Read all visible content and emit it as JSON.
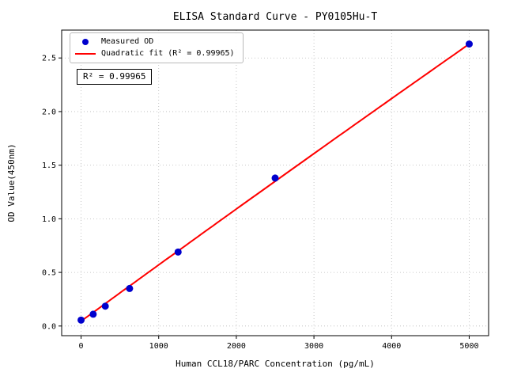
{
  "chart_data": {
    "type": "scatter",
    "title": "ELISA Standard Curve - PY0105Hu-T",
    "xlabel": "Human CCL18/PARC Concentration (pg/mL)",
    "ylabel": "OD Value(450nm)",
    "xlim": [
      -250,
      5250
    ],
    "ylim": [
      -0.09,
      2.76
    ],
    "xticks": {
      "values": [
        0,
        1000,
        2000,
        3000,
        4000,
        5000
      ],
      "labels": [
        "0",
        "1000",
        "2000",
        "3000",
        "4000",
        "5000"
      ]
    },
    "yticks": {
      "values": [
        0,
        0.5,
        1.0,
        1.5,
        2.0,
        2.5
      ],
      "labels": [
        "0.0",
        "0.5",
        "1.0",
        "1.5",
        "2.0",
        "2.5"
      ]
    },
    "grid": true,
    "grid_style": "dotted",
    "annotation": "R² = 0.99965",
    "r_squared": "0.99965",
    "legend": [
      {
        "label": "Measured OD",
        "type": "point",
        "color": "#0000cd"
      },
      {
        "label": "Quadratic fit (R² = 0.99965)",
        "type": "line",
        "color": "#ff0000"
      }
    ],
    "series": [
      {
        "name": "Measured OD",
        "type": "scatter",
        "color": "#0000cd",
        "points": [
          [
            0,
            0.055
          ],
          [
            156,
            0.11
          ],
          [
            312,
            0.185
          ],
          [
            625,
            0.35
          ],
          [
            1250,
            0.69
          ],
          [
            2500,
            1.38
          ],
          [
            5000,
            2.63
          ]
        ]
      },
      {
        "name": "Quadratic fit",
        "type": "line",
        "color": "#ff0000",
        "fit": {
          "a": 0.045,
          "b": 0.000527,
          "c": -2e-09,
          "x_min": 0,
          "x_max": 5000
        }
      }
    ]
  }
}
